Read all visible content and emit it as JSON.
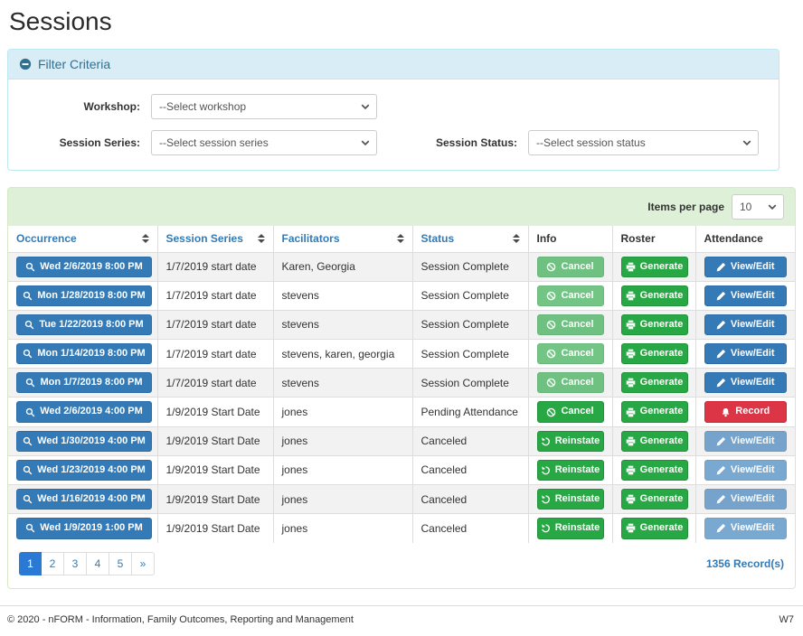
{
  "page_title": "Sessions",
  "filter_panel": {
    "title": "Filter Criteria",
    "fields": [
      {
        "label": "Workshop:",
        "value": "--Select workshop"
      },
      {
        "label": "Session Series:",
        "value": "--Select session series"
      },
      {
        "label": "Session Status:",
        "value": "--Select session status"
      }
    ]
  },
  "table_panel": {
    "items_per_page_label": "Items per page",
    "items_per_page_value": "10",
    "columns": [
      {
        "label": "Occurrence",
        "sortable": true
      },
      {
        "label": "Session Series",
        "sortable": true
      },
      {
        "label": "Facilitators",
        "sortable": true
      },
      {
        "label": "Status",
        "sortable": true
      },
      {
        "label": "Info",
        "sortable": false
      },
      {
        "label": "Roster",
        "sortable": false
      },
      {
        "label": "Attendance",
        "sortable": false
      }
    ],
    "rows": [
      {
        "occurrence": "Wed 2/6/2019 8:00 PM",
        "session_series": "1/7/2019 start date",
        "facilitators": "Karen, Georgia",
        "status": "Session Complete",
        "info": {
          "label": "Cancel",
          "icon": "ban-icon",
          "style": "green",
          "disabled": true
        },
        "roster": {
          "label": "Generate",
          "icon": "printer-icon",
          "style": "green",
          "disabled": false
        },
        "attendance": {
          "label": "View/Edit",
          "icon": "pencil-icon",
          "style": "blue",
          "disabled": false
        }
      },
      {
        "occurrence": "Mon 1/28/2019 8:00 PM",
        "session_series": "1/7/2019 start date",
        "facilitators": "stevens",
        "status": "Session Complete",
        "info": {
          "label": "Cancel",
          "icon": "ban-icon",
          "style": "green",
          "disabled": true
        },
        "roster": {
          "label": "Generate",
          "icon": "printer-icon",
          "style": "green",
          "disabled": false
        },
        "attendance": {
          "label": "View/Edit",
          "icon": "pencil-icon",
          "style": "blue",
          "disabled": false
        }
      },
      {
        "occurrence": "Tue 1/22/2019 8:00 PM",
        "session_series": "1/7/2019 start date",
        "facilitators": "stevens",
        "status": "Session Complete",
        "info": {
          "label": "Cancel",
          "icon": "ban-icon",
          "style": "green",
          "disabled": true
        },
        "roster": {
          "label": "Generate",
          "icon": "printer-icon",
          "style": "green",
          "disabled": false
        },
        "attendance": {
          "label": "View/Edit",
          "icon": "pencil-icon",
          "style": "blue",
          "disabled": false
        }
      },
      {
        "occurrence": "Mon 1/14/2019 8:00 PM",
        "session_series": "1/7/2019 start date",
        "facilitators": "stevens, karen, georgia",
        "status": "Session Complete",
        "info": {
          "label": "Cancel",
          "icon": "ban-icon",
          "style": "green",
          "disabled": true
        },
        "roster": {
          "label": "Generate",
          "icon": "printer-icon",
          "style": "green",
          "disabled": false
        },
        "attendance": {
          "label": "View/Edit",
          "icon": "pencil-icon",
          "style": "blue",
          "disabled": false
        }
      },
      {
        "occurrence": "Mon 1/7/2019 8:00 PM",
        "session_series": "1/7/2019 start date",
        "facilitators": "stevens",
        "status": "Session Complete",
        "info": {
          "label": "Cancel",
          "icon": "ban-icon",
          "style": "green",
          "disabled": true
        },
        "roster": {
          "label": "Generate",
          "icon": "printer-icon",
          "style": "green",
          "disabled": false
        },
        "attendance": {
          "label": "View/Edit",
          "icon": "pencil-icon",
          "style": "blue",
          "disabled": false
        }
      },
      {
        "occurrence": "Wed 2/6/2019 4:00 PM",
        "session_series": "1/9/2019 Start Date",
        "facilitators": "jones",
        "status": "Pending Attendance",
        "info": {
          "label": "Cancel",
          "icon": "ban-icon",
          "style": "green",
          "disabled": false
        },
        "roster": {
          "label": "Generate",
          "icon": "printer-icon",
          "style": "green",
          "disabled": false
        },
        "attendance": {
          "label": "Record",
          "icon": "bell-icon",
          "style": "red",
          "disabled": false
        }
      },
      {
        "occurrence": "Wed 1/30/2019 4:00 PM",
        "session_series": "1/9/2019 Start Date",
        "facilitators": "jones",
        "status": "Canceled",
        "info": {
          "label": "Reinstate",
          "icon": "reinstate-icon",
          "style": "green",
          "disabled": false
        },
        "roster": {
          "label": "Generate",
          "icon": "printer-icon",
          "style": "green",
          "disabled": false
        },
        "attendance": {
          "label": "View/Edit",
          "icon": "pencil-icon",
          "style": "blue",
          "disabled": true
        }
      },
      {
        "occurrence": "Wed 1/23/2019 4:00 PM",
        "session_series": "1/9/2019 Start Date",
        "facilitators": "jones",
        "status": "Canceled",
        "info": {
          "label": "Reinstate",
          "icon": "reinstate-icon",
          "style": "green",
          "disabled": false
        },
        "roster": {
          "label": "Generate",
          "icon": "printer-icon",
          "style": "green",
          "disabled": false
        },
        "attendance": {
          "label": "View/Edit",
          "icon": "pencil-icon",
          "style": "blue",
          "disabled": true
        }
      },
      {
        "occurrence": "Wed 1/16/2019 4:00 PM",
        "session_series": "1/9/2019 Start Date",
        "facilitators": "jones",
        "status": "Canceled",
        "info": {
          "label": "Reinstate",
          "icon": "reinstate-icon",
          "style": "green",
          "disabled": false
        },
        "roster": {
          "label": "Generate",
          "icon": "printer-icon",
          "style": "green",
          "disabled": false
        },
        "attendance": {
          "label": "View/Edit",
          "icon": "pencil-icon",
          "style": "blue",
          "disabled": true
        }
      },
      {
        "occurrence": "Wed 1/9/2019 1:00 PM",
        "session_series": "1/9/2019 Start Date",
        "facilitators": "jones",
        "status": "Canceled",
        "info": {
          "label": "Reinstate",
          "icon": "reinstate-icon",
          "style": "green",
          "disabled": false
        },
        "roster": {
          "label": "Generate",
          "icon": "printer-icon",
          "style": "green",
          "disabled": false
        },
        "attendance": {
          "label": "View/Edit",
          "icon": "pencil-icon",
          "style": "blue",
          "disabled": true
        }
      }
    ],
    "pagination": [
      "1",
      "2",
      "3",
      "4",
      "5",
      "»"
    ],
    "active_page": "1",
    "record_count": "1356 Record(s)"
  },
  "footer": {
    "copyright": "© 2020 - nFORM - Information, Family Outcomes, Reporting and Management",
    "version": "W7"
  },
  "colors": {
    "accent_blue": "#337ab7",
    "action_green": "#28a745",
    "alert_red": "#dc3545",
    "info_header_bg": "#d9edf7",
    "info_header_text": "#31708f",
    "success_header_bg": "#dff0d8"
  }
}
